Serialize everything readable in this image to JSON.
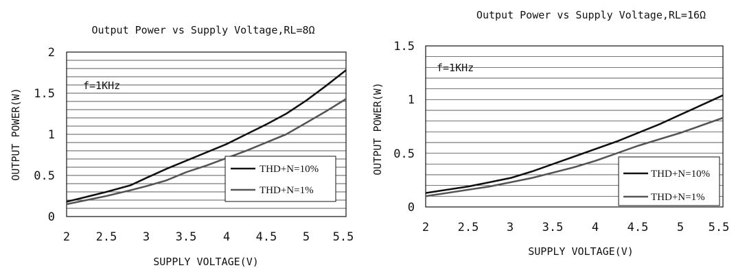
{
  "chart_data": [
    {
      "type": "line",
      "title": "Output Power vs Supply Voltage,RL=8Ω",
      "xlabel": "SUPPLY VOLTAGE(V)",
      "ylabel": "OUTPUT POWER(W)",
      "annotation": "f=1KHz",
      "xlim": [
        2,
        5.5
      ],
      "ylim": [
        0,
        2
      ],
      "xticks": [
        "2",
        "2.5",
        "3",
        "3.5",
        "4",
        "4.5",
        "5",
        "5.5"
      ],
      "yticks": [
        "0",
        "0.5",
        "1",
        "1.5",
        "2"
      ],
      "grid": "horizontal",
      "legend_position": "bottom-right",
      "series": [
        {
          "name": "THD+N=10%",
          "color": "#111111",
          "x": [
            2,
            2.25,
            2.5,
            2.8,
            3,
            3.25,
            3.5,
            3.75,
            4,
            4.25,
            4.5,
            4.75,
            5,
            5.25,
            5.5
          ],
          "y": [
            0.18,
            0.24,
            0.3,
            0.38,
            0.47,
            0.58,
            0.68,
            0.78,
            0.88,
            1.0,
            1.12,
            1.25,
            1.41,
            1.59,
            1.78
          ]
        },
        {
          "name": "THD+N=1%",
          "color": "#555555",
          "x": [
            2,
            2.25,
            2.5,
            2.8,
            3,
            3.25,
            3.5,
            3.75,
            4,
            4.25,
            4.5,
            4.75,
            5,
            5.25,
            5.5
          ],
          "y": [
            0.15,
            0.2,
            0.25,
            0.32,
            0.37,
            0.44,
            0.54,
            0.62,
            0.71,
            0.8,
            0.9,
            1.0,
            1.14,
            1.28,
            1.43
          ]
        }
      ]
    },
    {
      "type": "line",
      "title": "Output Power vs Supply Voltage,RL=16Ω",
      "xlabel": "SUPPLY VOLTAGE(V)",
      "ylabel": "OUTPUT POWER(W)",
      "annotation": "f=1KHz",
      "xlim": [
        2,
        5.5
      ],
      "ylim": [
        0,
        1.5
      ],
      "xticks": [
        "2",
        "2.5",
        "3",
        "3.5",
        "4",
        "4.5",
        "5",
        "5.5"
      ],
      "yticks": [
        "0",
        "0.5",
        "1",
        "1.5"
      ],
      "grid": "horizontal",
      "legend_position": "bottom-right",
      "series": [
        {
          "name": "THD+N=10%",
          "color": "#111111",
          "x": [
            2,
            2.25,
            2.5,
            2.75,
            3,
            3.25,
            3.5,
            3.75,
            4,
            4.25,
            4.5,
            4.75,
            5,
            5.25,
            5.5
          ],
          "y": [
            0.13,
            0.16,
            0.19,
            0.23,
            0.27,
            0.33,
            0.4,
            0.47,
            0.54,
            0.61,
            0.69,
            0.77,
            0.86,
            0.95,
            1.04
          ]
        },
        {
          "name": "THD+N=1%",
          "color": "#555555",
          "x": [
            2,
            2.25,
            2.5,
            2.75,
            3,
            3.25,
            3.5,
            3.75,
            4,
            4.25,
            4.5,
            4.75,
            5,
            5.25,
            5.5
          ],
          "y": [
            0.1,
            0.13,
            0.16,
            0.19,
            0.23,
            0.27,
            0.32,
            0.37,
            0.43,
            0.5,
            0.57,
            0.63,
            0.69,
            0.76,
            0.83
          ]
        }
      ]
    }
  ]
}
